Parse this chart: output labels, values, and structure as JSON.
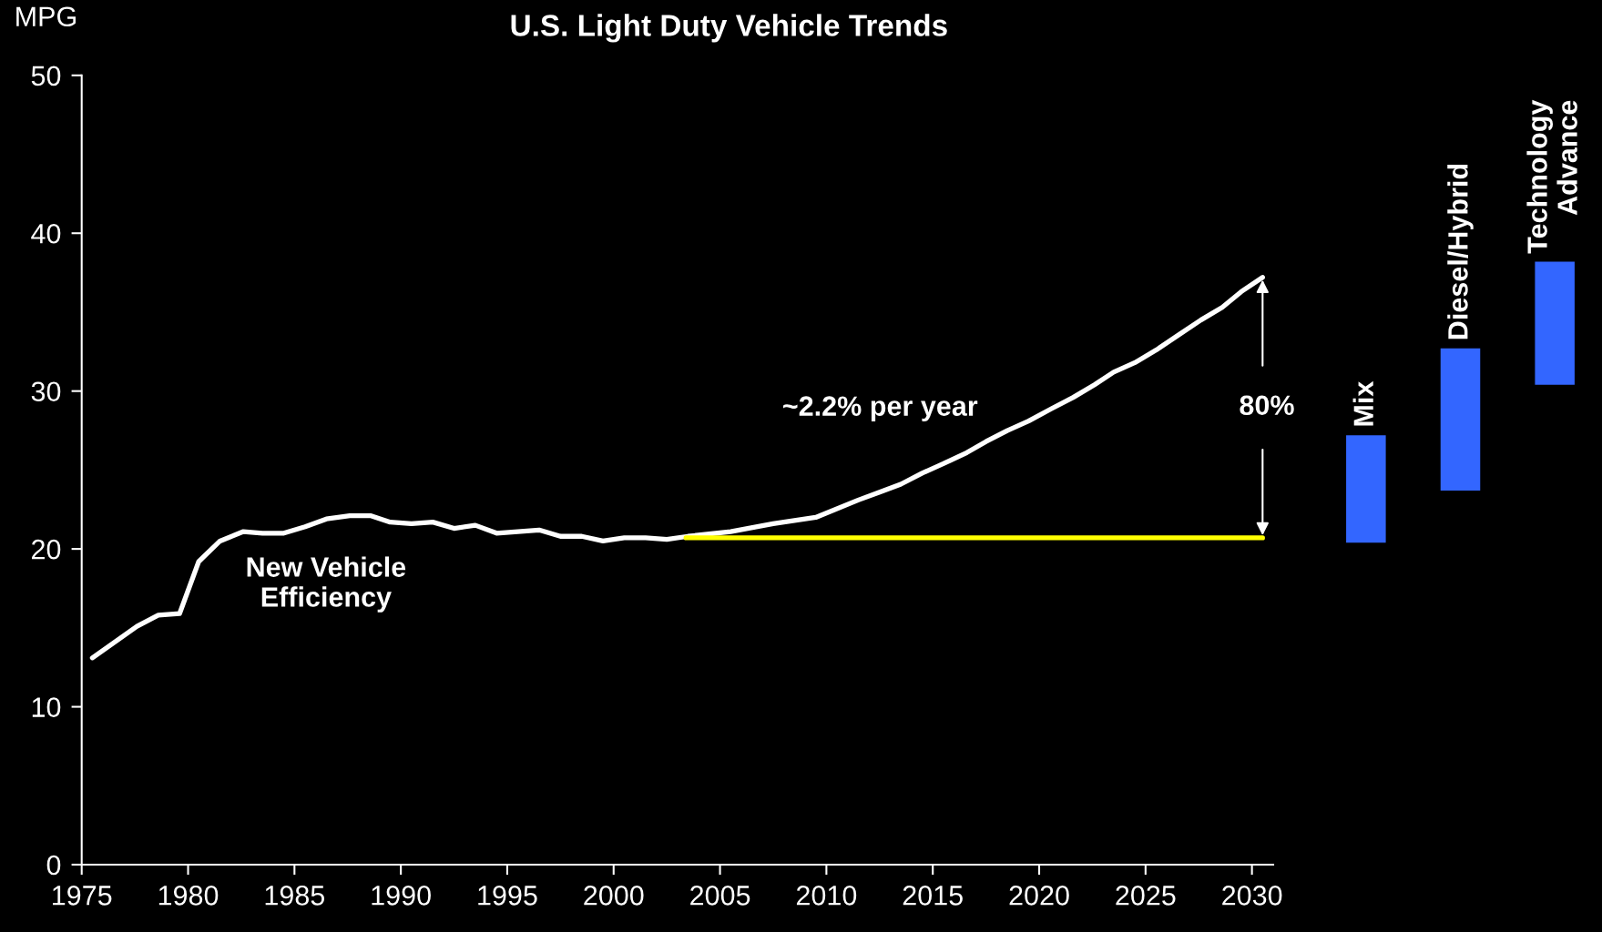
{
  "chart_data": [
    {
      "type": "line",
      "title": "U.S. Light Duty Vehicle Trends",
      "ylabel": "MPG",
      "xlim": [
        1975,
        2031
      ],
      "xticks": [
        1975,
        1980,
        1985,
        1990,
        1995,
        2000,
        2005,
        2010,
        2015,
        2020,
        2025,
        2030
      ],
      "ylim": [
        0,
        50
      ],
      "yticks": [
        0,
        10,
        20,
        30,
        40,
        50
      ],
      "grid": false,
      "legend": false,
      "marker": "none",
      "line_style": "solid",
      "series": [
        {
          "name": "New Vehicle\nEfficiency",
          "color": "#ffffff",
          "x": [
            1975.5,
            1977.6,
            1978.6,
            1979.6,
            1980.5,
            1981.5,
            1982.6,
            1983.5,
            1984.5,
            1985.5,
            1986.5,
            1987.6,
            1988.6,
            1989.5,
            1990.5,
            1991.5,
            1992.5,
            1993.5,
            1994.5,
            1995.5,
            1996.5,
            1997.5,
            1998.5,
            1999.5,
            2000.5,
            2001.5,
            2002.5,
            2003.5,
            2005.5,
            2007.5,
            2009.5,
            2011.5,
            2012.5,
            2013.5,
            2014.5,
            2015.5,
            2016.6,
            2017.5,
            2018.5,
            2019.5,
            2020.6,
            2021.6,
            2022.6,
            2023.5,
            2024.5,
            2025.5,
            2026.6,
            2027.6,
            2028.6,
            2029.5,
            2030.5
          ],
          "values": [
            13.1,
            15.1,
            15.8,
            15.9,
            19.2,
            20.5,
            21.1,
            21.0,
            21.0,
            21.4,
            21.9,
            22.1,
            22.1,
            21.7,
            21.6,
            21.7,
            21.3,
            21.5,
            21.0,
            21.1,
            21.2,
            20.8,
            20.8,
            20.5,
            20.7,
            20.7,
            20.6,
            20.8,
            21.1,
            21.6,
            22.0,
            23.1,
            23.6,
            24.1,
            24.8,
            25.4,
            26.1,
            26.8,
            27.5,
            28.1,
            28.9,
            29.6,
            30.4,
            31.2,
            31.8,
            32.6,
            33.6,
            34.5,
            35.3,
            36.3,
            37.2
          ]
        },
        {
          "color": "#ffff00",
          "x": [
            2003.4,
            2030.5
          ],
          "values": [
            20.7,
            20.7
          ]
        }
      ],
      "annotations": [
        "~2.2% per year",
        {
          "text": "80%",
          "x": 2030.5,
          "y": 37.2
        }
      ]
    },
    {
      "type": "bar",
      "categories": [
        "Mix",
        "Diesel/Hybrid",
        "Technology\nAdvance"
      ],
      "base": [
        20.4,
        23.7,
        30.4
      ],
      "values": [
        6.8,
        9.0,
        7.8
      ],
      "color": "#3366ff",
      "ylim": [
        0,
        50
      ],
      "tick_labels": false
    }
  ]
}
